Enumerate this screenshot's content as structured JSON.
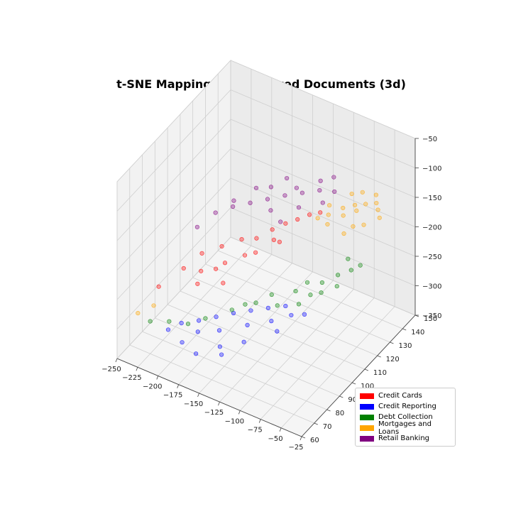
{
  "chart_data": {
    "type": "scatter",
    "subtype": "3d",
    "title": "t-SNE Mapping of Vectorized Documents (3d)",
    "xlabel": "",
    "ylabel": "",
    "zlabel": "",
    "xlim": [
      -250,
      -25
    ],
    "ylim": [
      60,
      150
    ],
    "zlim": [
      -350,
      -50
    ],
    "x_ticks": [
      "−250",
      "−225",
      "−200",
      "−175",
      "−150",
      "−125",
      "−100",
      "−75",
      "−50",
      "−25"
    ],
    "y_ticks": [
      "60",
      "70",
      "80",
      "90",
      "100",
      "110",
      "120",
      "130",
      "140",
      "150"
    ],
    "z_ticks": [
      "−350",
      "−300",
      "−250",
      "−200",
      "−150",
      "−100",
      "−50"
    ],
    "grid": true,
    "legend_position": "bottom-right",
    "series": [
      {
        "name": "Credit Cards",
        "color": "#ff0000",
        "points": [
          [
            -205,
            98,
            -232
          ],
          [
            -190,
            104,
            -225
          ],
          [
            -175,
            110,
            -218
          ],
          [
            -160,
            112,
            -212
          ],
          [
            -150,
            118,
            -205
          ],
          [
            -140,
            122,
            -198
          ],
          [
            -130,
            125,
            -192
          ],
          [
            -215,
            90,
            -245
          ],
          [
            -180,
            100,
            -238
          ],
          [
            -165,
            106,
            -230
          ],
          [
            -200,
            94,
            -250
          ],
          [
            -145,
            116,
            -215
          ],
          [
            -120,
            128,
            -185
          ],
          [
            -110,
            130,
            -180
          ],
          [
            -230,
            80,
            -262
          ],
          [
            -185,
            96,
            -242
          ],
          [
            -155,
            108,
            -224
          ],
          [
            -135,
            114,
            -208
          ],
          [
            -195,
            88,
            -255
          ],
          [
            -170,
            92,
            -248
          ]
        ]
      },
      {
        "name": "Credit Reporting",
        "color": "#0000ff",
        "points": [
          [
            -190,
            72,
            -282
          ],
          [
            -175,
            76,
            -278
          ],
          [
            -160,
            80,
            -272
          ],
          [
            -145,
            84,
            -266
          ],
          [
            -130,
            88,
            -262
          ],
          [
            -115,
            92,
            -258
          ],
          [
            -100,
            96,
            -255
          ],
          [
            -200,
            68,
            -290
          ],
          [
            -170,
            72,
            -285
          ],
          [
            -150,
            76,
            -280
          ],
          [
            -125,
            82,
            -270
          ],
          [
            -105,
            88,
            -265
          ],
          [
            -90,
            94,
            -260
          ],
          [
            -180,
            66,
            -295
          ],
          [
            -140,
            70,
            -288
          ],
          [
            -120,
            76,
            -282
          ],
          [
            -95,
            86,
            -272
          ],
          [
            -80,
            98,
            -262
          ],
          [
            -160,
            64,
            -298
          ],
          [
            -135,
            68,
            -294
          ]
        ]
      },
      {
        "name": "Debt Collection",
        "color": "#008000",
        "points": [
          [
            -205,
            72,
            -288
          ],
          [
            -170,
            78,
            -276
          ],
          [
            -130,
            92,
            -258
          ],
          [
            -100,
            104,
            -248
          ],
          [
            -80,
            112,
            -240
          ],
          [
            -70,
            118,
            -235
          ],
          [
            -60,
            122,
            -230
          ],
          [
            -90,
            100,
            -255
          ],
          [
            -110,
            96,
            -260
          ],
          [
            -75,
            108,
            -245
          ],
          [
            -225,
            70,
            -295
          ],
          [
            -150,
            86,
            -268
          ],
          [
            -65,
            114,
            -242
          ],
          [
            -85,
            106,
            -250
          ],
          [
            -55,
            126,
            -228
          ],
          [
            -120,
            98,
            -252
          ],
          [
            -185,
            74,
            -285
          ],
          [
            -95,
            110,
            -244
          ],
          [
            -140,
            90,
            -262
          ],
          [
            -70,
            126,
            -226
          ]
        ]
      },
      {
        "name": "Mortgages and Loans",
        "color": "#ffa500",
        "points": [
          [
            -90,
            135,
            -172
          ],
          [
            -80,
            138,
            -168
          ],
          [
            -70,
            140,
            -165
          ],
          [
            -60,
            142,
            -162
          ],
          [
            -100,
            130,
            -178
          ],
          [
            -85,
            132,
            -175
          ],
          [
            -75,
            136,
            -170
          ],
          [
            -65,
            145,
            -158
          ],
          [
            -55,
            140,
            -166
          ],
          [
            -95,
            126,
            -182
          ],
          [
            -110,
            128,
            -185
          ],
          [
            -70,
            130,
            -180
          ],
          [
            -50,
            138,
            -172
          ],
          [
            -80,
            144,
            -160
          ],
          [
            -60,
            132,
            -176
          ],
          [
            -240,
            70,
            -290
          ],
          [
            -230,
            76,
            -285
          ],
          [
            -105,
            134,
            -174
          ],
          [
            -90,
            142,
            -164
          ],
          [
            -75,
            126,
            -186
          ]
        ]
      },
      {
        "name": "Retail Banking",
        "color": "#800080",
        "points": [
          [
            -180,
            120,
            -182
          ],
          [
            -165,
            124,
            -176
          ],
          [
            -150,
            128,
            -170
          ],
          [
            -135,
            132,
            -166
          ],
          [
            -120,
            136,
            -162
          ],
          [
            -105,
            138,
            -160
          ],
          [
            -195,
            116,
            -188
          ],
          [
            -170,
            130,
            -172
          ],
          [
            -145,
            134,
            -168
          ],
          [
            -125,
            140,
            -158
          ],
          [
            -210,
            112,
            -198
          ],
          [
            -155,
            120,
            -180
          ],
          [
            -130,
            126,
            -174
          ],
          [
            -110,
            132,
            -168
          ],
          [
            -185,
            128,
            -178
          ],
          [
            -220,
            104,
            -210
          ],
          [
            -160,
            136,
            -165
          ],
          [
            -140,
            118,
            -186
          ],
          [
            -200,
            120,
            -190
          ],
          [
            -115,
            144,
            -155
          ]
        ]
      }
    ]
  }
}
